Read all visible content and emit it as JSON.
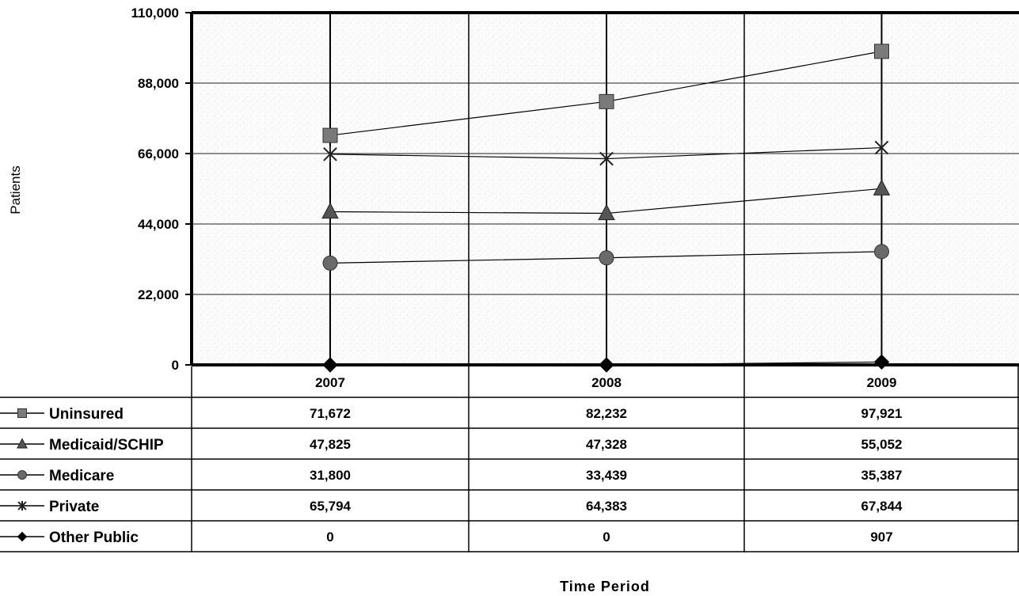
{
  "chart_data": {
    "type": "line",
    "title": "",
    "xlabel": "Time Period",
    "ylabel": "Patients",
    "categories": [
      "2007",
      "2008",
      "2009"
    ],
    "ylim": [
      0,
      110000
    ],
    "yticks": [
      0,
      22000,
      44000,
      66000,
      88000,
      110000
    ],
    "ytick_labels": [
      "0",
      "22,000",
      "44,000",
      "66,000",
      "88,000",
      "110,000"
    ],
    "grid": true,
    "legend": "data-table-left",
    "series": [
      {
        "name": "Uninsured",
        "marker": "square",
        "color": "#7a7a7a",
        "values": [
          71672,
          82232,
          97921
        ],
        "labels": [
          "71,672",
          "82,232",
          "97,921"
        ]
      },
      {
        "name": "Medicaid/SCHIP",
        "marker": "triangle",
        "color": "#555555",
        "values": [
          47825,
          47328,
          55052
        ],
        "labels": [
          "47,825",
          "47,328",
          "55,052"
        ]
      },
      {
        "name": "Medicare",
        "marker": "circle",
        "color": "#6a6a6a",
        "values": [
          31800,
          33439,
          35387
        ],
        "labels": [
          "31,800",
          "33,439",
          "35,387"
        ]
      },
      {
        "name": "Private",
        "marker": "star",
        "color": "#222222",
        "values": [
          65794,
          64383,
          67844
        ],
        "labels": [
          "65,794",
          "64,383",
          "67,844"
        ]
      },
      {
        "name": "Other Public",
        "marker": "diamond",
        "color": "#000000",
        "values": [
          0,
          0,
          907
        ],
        "labels": [
          "0",
          "0",
          "907"
        ]
      }
    ]
  }
}
